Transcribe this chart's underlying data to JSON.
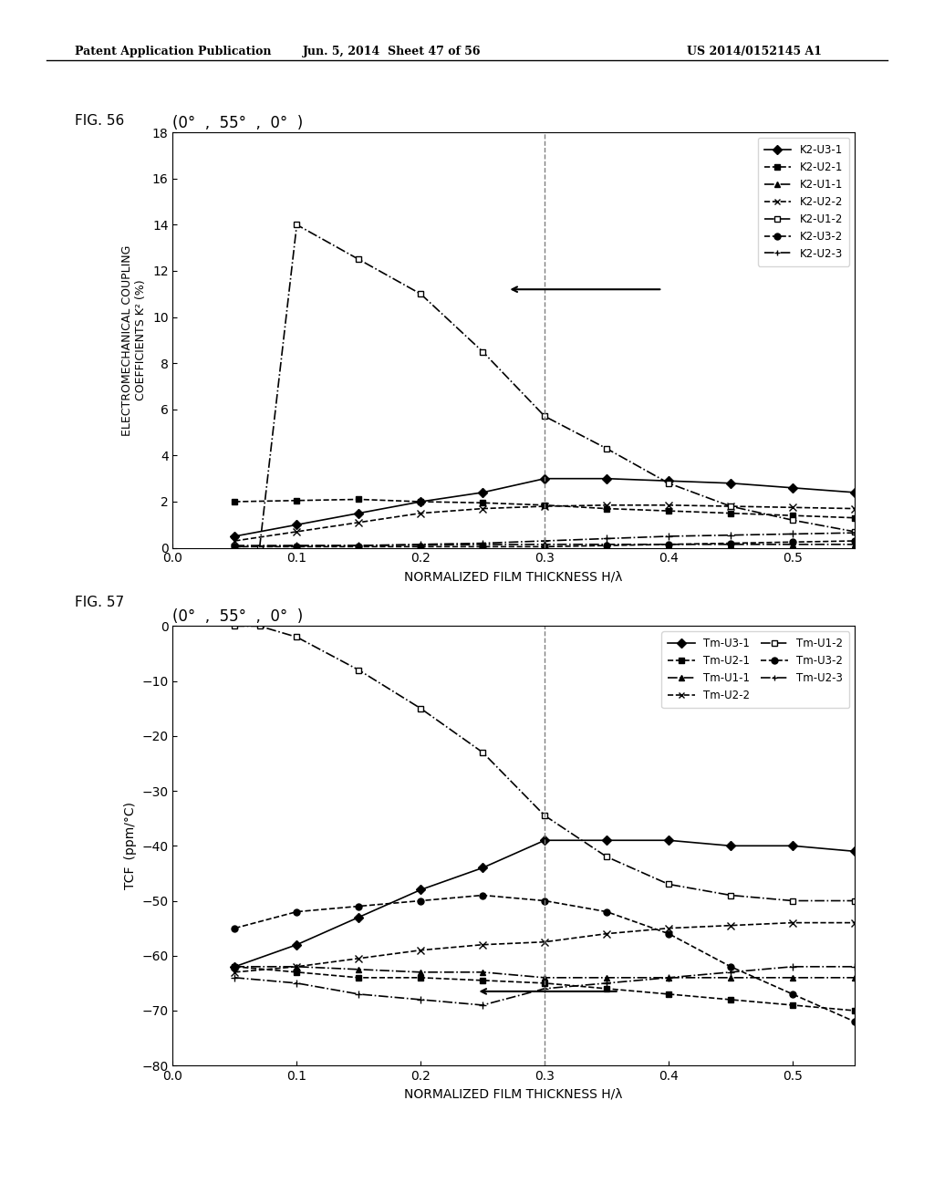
{
  "header_text_left": "Patent Application Publication",
  "header_text_mid": "Jun. 5, 2014  Sheet 47 of 56",
  "header_text_right": "US 2014/0152145 A1",
  "fig56_label": "FIG. 56",
  "fig57_label": "FIG. 57",
  "title_top": "(0°  ,  55°  ,  0°  )",
  "fig56_ylabel1": "ELECTROMECHANICAL COUPLING",
  "fig56_ylabel2": "COEFFICIENTS K² (%)",
  "fig57_ylabel": "TCF　(ppm/°C)",
  "xlabel": "NORMALIZED FILM THICKNESS H/λ",
  "fig56_ylim": [
    0,
    18
  ],
  "fig56_yticks": [
    0,
    2,
    4,
    6,
    8,
    10,
    12,
    14,
    16,
    18
  ],
  "fig56_xlim": [
    0.0,
    0.55
  ],
  "fig56_xticks": [
    0.0,
    0.1,
    0.2,
    0.3,
    0.4,
    0.5
  ],
  "fig57_ylim": [
    -80,
    0
  ],
  "fig57_yticks": [
    -80,
    -70,
    -60,
    -50,
    -40,
    -30,
    -20,
    -10,
    0
  ],
  "fig57_xlim": [
    0.0,
    0.55
  ],
  "fig57_xticks": [
    0,
    0.1,
    0.2,
    0.3,
    0.4,
    0.5
  ],
  "vline_x": 0.3,
  "fig56_series": {
    "K2-U3-1": {
      "x": [
        0.05,
        0.1,
        0.15,
        0.2,
        0.25,
        0.3,
        0.35,
        0.4,
        0.45,
        0.5,
        0.55
      ],
      "y": [
        0.5,
        1.0,
        1.5,
        2.0,
        2.4,
        3.0,
        3.0,
        2.9,
        2.8,
        2.6,
        2.4
      ],
      "style": "-",
      "marker": "D",
      "markersize": 5,
      "color": "black",
      "label": "K2-U3-1",
      "fillstyle": "full"
    },
    "K2-U2-1": {
      "x": [
        0.05,
        0.1,
        0.15,
        0.2,
        0.25,
        0.3,
        0.35,
        0.4,
        0.45,
        0.5,
        0.55
      ],
      "y": [
        2.0,
        2.05,
        2.1,
        2.0,
        1.95,
        1.85,
        1.7,
        1.6,
        1.5,
        1.4,
        1.3
      ],
      "style": "--",
      "marker": "s",
      "markersize": 5,
      "color": "black",
      "label": "K2-U2-1",
      "fillstyle": "full"
    },
    "K2-U1-1": {
      "x": [
        0.05,
        0.1,
        0.15,
        0.2,
        0.25,
        0.3,
        0.35,
        0.4,
        0.45,
        0.5,
        0.55
      ],
      "y": [
        0.05,
        0.08,
        0.1,
        0.12,
        0.14,
        0.15,
        0.15,
        0.15,
        0.15,
        0.15,
        0.15
      ],
      "style": "-.",
      "marker": "^",
      "markersize": 5,
      "color": "black",
      "label": "K2-U1-1",
      "fillstyle": "full"
    },
    "K2-U2-2": {
      "x": [
        0.05,
        0.1,
        0.15,
        0.2,
        0.25,
        0.3,
        0.35,
        0.4,
        0.45,
        0.5,
        0.55
      ],
      "y": [
        0.3,
        0.7,
        1.1,
        1.5,
        1.7,
        1.8,
        1.85,
        1.85,
        1.8,
        1.75,
        1.7
      ],
      "style": "--",
      "marker": "x",
      "markersize": 6,
      "color": "black",
      "label": "K2-U2-2",
      "fillstyle": "full"
    },
    "K2-U1-2": {
      "x": [
        0.07,
        0.1,
        0.15,
        0.2,
        0.25,
        0.3,
        0.35,
        0.4,
        0.45,
        0.5,
        0.55
      ],
      "y": [
        0.0,
        14.0,
        12.5,
        11.0,
        8.5,
        5.7,
        4.3,
        2.8,
        1.8,
        1.2,
        0.7
      ],
      "style": "-.",
      "marker": "s",
      "markersize": 5,
      "color": "black",
      "label": "K2-U1-2",
      "fillstyle": "none"
    },
    "K2-U3-2": {
      "x": [
        0.05,
        0.1,
        0.15,
        0.2,
        0.25,
        0.3,
        0.35,
        0.4,
        0.45,
        0.5,
        0.55
      ],
      "y": [
        0.05,
        0.05,
        0.05,
        0.05,
        0.05,
        0.05,
        0.1,
        0.15,
        0.2,
        0.25,
        0.3
      ],
      "style": "--",
      "marker": "o",
      "markersize": 5,
      "color": "black",
      "label": "K2-U3-2",
      "fillstyle": "full"
    },
    "K2-U2-3": {
      "x": [
        0.05,
        0.1,
        0.15,
        0.2,
        0.25,
        0.3,
        0.35,
        0.4,
        0.45,
        0.5,
        0.55
      ],
      "y": [
        0.1,
        0.1,
        0.1,
        0.15,
        0.2,
        0.3,
        0.4,
        0.5,
        0.55,
        0.6,
        0.65
      ],
      "style": "-.",
      "marker": "+",
      "markersize": 6,
      "color": "black",
      "label": "K2-U2-3",
      "fillstyle": "full"
    }
  },
  "fig57_series": {
    "Tm-U3-1": {
      "x": [
        0.05,
        0.1,
        0.15,
        0.2,
        0.25,
        0.3,
        0.35,
        0.4,
        0.45,
        0.5,
        0.55
      ],
      "y": [
        -62,
        -58,
        -53,
        -48,
        -44,
        -39,
        -39,
        -39,
        -40,
        -40,
        -41
      ],
      "style": "-",
      "marker": "D",
      "markersize": 5,
      "color": "black",
      "label": "Tm-U3-1",
      "fillstyle": "full"
    },
    "Tm-U2-1": {
      "x": [
        0.05,
        0.1,
        0.15,
        0.2,
        0.25,
        0.3,
        0.35,
        0.4,
        0.45,
        0.5,
        0.55
      ],
      "y": [
        -62,
        -63,
        -64,
        -64,
        -64.5,
        -65,
        -66,
        -67,
        -68,
        -69,
        -70
      ],
      "style": "--",
      "marker": "s",
      "markersize": 5,
      "color": "black",
      "label": "Tm-U2-1",
      "fillstyle": "full"
    },
    "Tm-U1-1": {
      "x": [
        0.05,
        0.1,
        0.15,
        0.2,
        0.25,
        0.3,
        0.35,
        0.4,
        0.45,
        0.5,
        0.55
      ],
      "y": [
        -62,
        -62,
        -62.5,
        -63,
        -63,
        -64,
        -64,
        -64,
        -64,
        -64,
        -64
      ],
      "style": "-.",
      "marker": "^",
      "markersize": 5,
      "color": "black",
      "label": "Tm-U1-1",
      "fillstyle": "full"
    },
    "Tm-U2-2": {
      "x": [
        0.05,
        0.1,
        0.15,
        0.2,
        0.25,
        0.3,
        0.35,
        0.4,
        0.45,
        0.5,
        0.55
      ],
      "y": [
        -63,
        -62,
        -60.5,
        -59,
        -58,
        -57.5,
        -56,
        -55,
        -54.5,
        -54,
        -54
      ],
      "style": "--",
      "marker": "x",
      "markersize": 6,
      "color": "black",
      "label": "Tm-U2-2",
      "fillstyle": "full"
    },
    "Tm-U1-2": {
      "x": [
        0.05,
        0.07,
        0.1,
        0.15,
        0.2,
        0.25,
        0.3,
        0.35,
        0.4,
        0.45,
        0.5,
        0.55
      ],
      "y": [
        0.0,
        0.0,
        -2.0,
        -8.0,
        -15.0,
        -23.0,
        -34.5,
        -42,
        -47,
        -49,
        -50,
        -50
      ],
      "style": "-.",
      "marker": "s",
      "markersize": 5,
      "color": "black",
      "label": "Tm-U1-2",
      "fillstyle": "none"
    },
    "Tm-U3-2": {
      "x": [
        0.05,
        0.1,
        0.15,
        0.2,
        0.25,
        0.3,
        0.35,
        0.4,
        0.45,
        0.5,
        0.55
      ],
      "y": [
        -55,
        -52,
        -51,
        -50,
        -49,
        -50,
        -52,
        -56,
        -62,
        -67,
        -72
      ],
      "style": "--",
      "marker": "o",
      "markersize": 5,
      "color": "black",
      "label": "Tm-U3-2",
      "fillstyle": "full"
    },
    "Tm-U2-3": {
      "x": [
        0.05,
        0.1,
        0.15,
        0.2,
        0.25,
        0.3,
        0.35,
        0.4,
        0.45,
        0.5,
        0.55
      ],
      "y": [
        -64,
        -65,
        -67,
        -68,
        -69,
        -66,
        -65,
        -64,
        -63,
        -62,
        -62
      ],
      "style": "-.",
      "marker": "+",
      "markersize": 6,
      "color": "black",
      "label": "Tm-U2-3",
      "fillstyle": "full"
    }
  }
}
